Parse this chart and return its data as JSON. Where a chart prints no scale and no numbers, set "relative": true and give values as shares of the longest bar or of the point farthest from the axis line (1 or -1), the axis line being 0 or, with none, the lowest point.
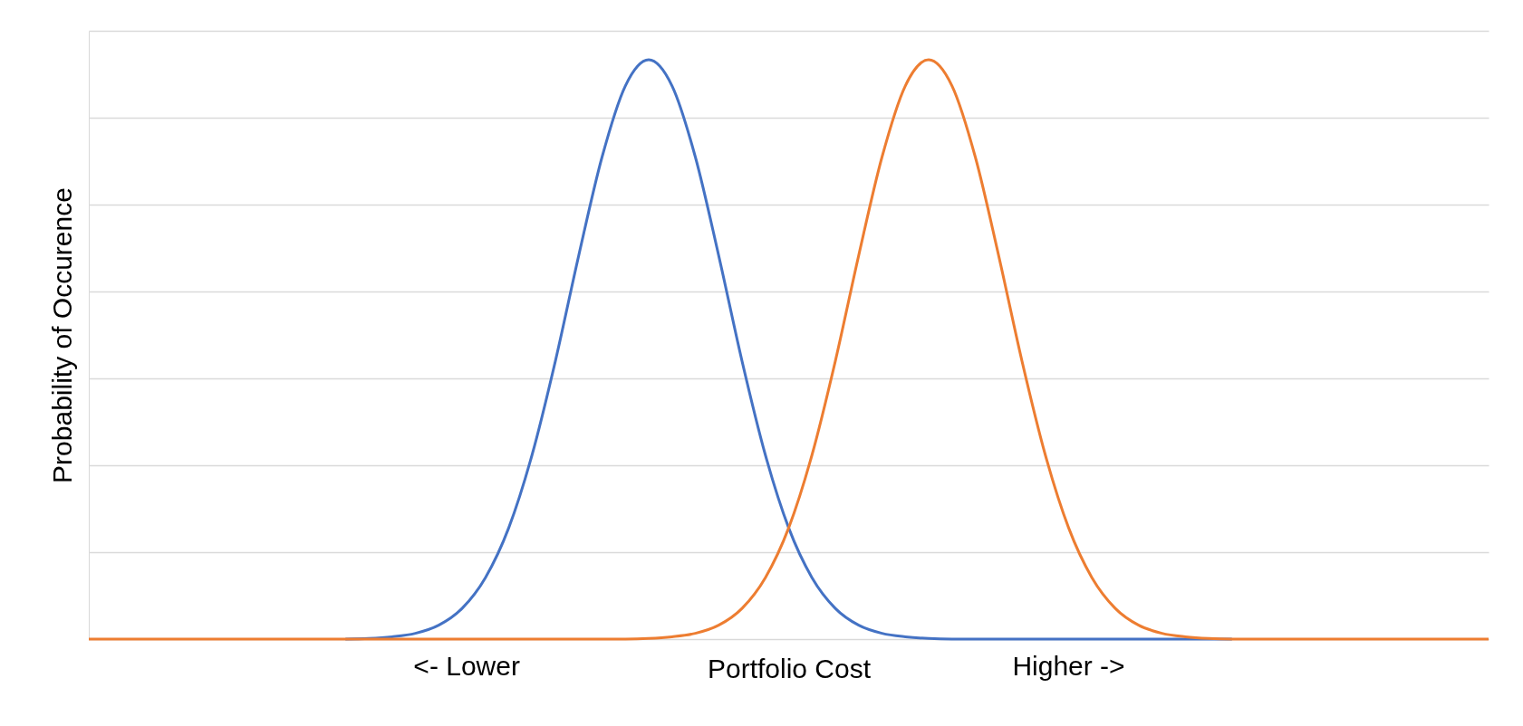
{
  "chart_data": {
    "type": "line",
    "relative": true,
    "ylabel": "Probability of Occurence",
    "xlabel": "Portfolio Cost",
    "annotations": [
      "<- Lower",
      "Higher ->"
    ],
    "grid": "y",
    "legend": false,
    "marker": "none",
    "categories": [
      null,
      null,
      null,
      null,
      null,
      null,
      null,
      null,
      null,
      null,
      null,
      null,
      null,
      null,
      null,
      null,
      null,
      null,
      null,
      null,
      null,
      null,
      null,
      null,
      null,
      null,
      null,
      null,
      null,
      null,
      null,
      null,
      null,
      null,
      null,
      null,
      null,
      null,
      null,
      null,
      null,
      null,
      null,
      null,
      null,
      null,
      null,
      null,
      null,
      null,
      null,
      null,
      null,
      null,
      null,
      null,
      null,
      null,
      null,
      null,
      null
    ],
    "series": [
      {
        "color": "#4472c4",
        "values": [
          null,
          null,
          null,
          null,
          null,
          null,
          null,
          null,
          null,
          null,
          null,
          0,
          0.001,
          0.004,
          0.01,
          0.024,
          0.053,
          0.106,
          0.192,
          0.318,
          0.48,
          0.662,
          0.832,
          0.955,
          1,
          0.955,
          0.832,
          0.662,
          0.48,
          0.318,
          0.192,
          0.106,
          0.053,
          0.024,
          0.01,
          0.004,
          0.001,
          0,
          0,
          0,
          0,
          0,
          0,
          0,
          0,
          0,
          0,
          0,
          0,
          0,
          null,
          null,
          null,
          null,
          null,
          null,
          null,
          null,
          null,
          null,
          null
        ]
      },
      {
        "color": "#ed7d31",
        "values": [
          0,
          0,
          0,
          0,
          0,
          0,
          0,
          0,
          0,
          0,
          0,
          0,
          0,
          0,
          0,
          0,
          0,
          0,
          0,
          0,
          0,
          0,
          0,
          0,
          0.001,
          0.004,
          0.01,
          0.024,
          0.053,
          0.106,
          0.192,
          0.318,
          0.48,
          0.662,
          0.832,
          0.955,
          1,
          0.955,
          0.832,
          0.662,
          0.48,
          0.318,
          0.192,
          0.106,
          0.053,
          0.024,
          0.01,
          0.004,
          0.001,
          0,
          0,
          0,
          0,
          0,
          0,
          0,
          0,
          0,
          0,
          0,
          0
        ]
      }
    ]
  }
}
